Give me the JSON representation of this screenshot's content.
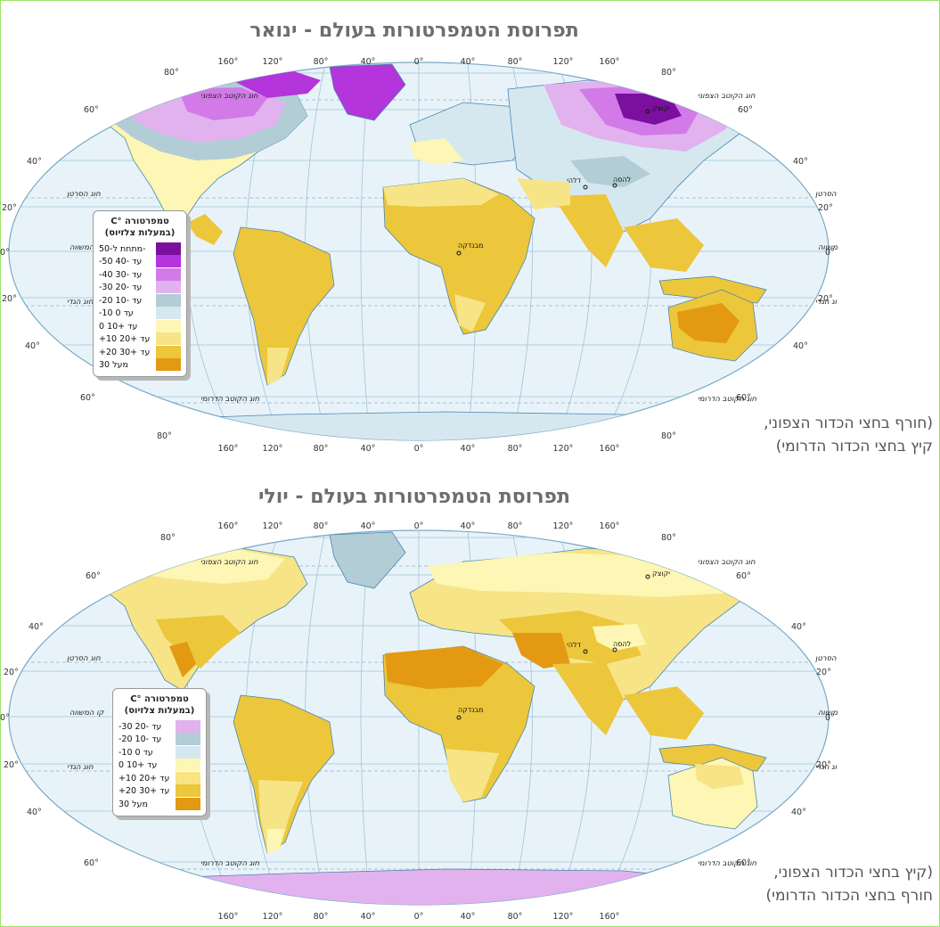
{
  "maps": [
    {
      "title": "תפרוסת הטמפרטורות בעולם - ינואר",
      "season_note": [
        "(חורף בחצי הכדור הצפוני,",
        "קיץ בחצי הכדור הדרומי)"
      ],
      "legend": {
        "title_line1": "טמפרטורה °C",
        "title_line2": "(במעלות צלזיוס)",
        "items": [
          {
            "label": "מתחת ל-50-",
            "color": "#7b0f9e"
          },
          {
            "label": "-50 עד -40",
            "color": "#b335db"
          },
          {
            "label": "-40 עד -30",
            "color": "#d27ae8"
          },
          {
            "label": "-30 עד -20",
            "color": "#e2b2ef"
          },
          {
            "label": "-20 עד -10",
            "color": "#b3cdd6"
          },
          {
            "label": "-10 עד 0",
            "color": "#d6e8ef"
          },
          {
            "label": "0 עד +10",
            "color": "#fdf6b4"
          },
          {
            "label": "+10 עד +20",
            "color": "#f6e486"
          },
          {
            "label": "+20 עד +30",
            "color": "#ecc63b"
          },
          {
            "label": "מעל 30",
            "color": "#e39a12"
          }
        ]
      },
      "places": [
        "יקוצק",
        "דלהי",
        "להסה",
        "מבנדקה"
      ]
    },
    {
      "title": "תפרוסת הטמפרטורות בעולם - יולי",
      "season_note": [
        "(קיץ בחצי הכדור הצפוני,",
        "חורף בחצי הכדור הדרומי)"
      ],
      "legend": {
        "title_line1": "טמפרטורה °C",
        "title_line2": "(במעלות צלזיוס)",
        "items": [
          {
            "label": "-30 עד -20",
            "color": "#e2b2ef"
          },
          {
            "label": "-20 עד -10",
            "color": "#b3cdd6"
          },
          {
            "label": "-10 עד 0",
            "color": "#d6e8ef"
          },
          {
            "label": "0 עד +10",
            "color": "#fdf6b4"
          },
          {
            "label": "+10 עד +20",
            "color": "#f6e486"
          },
          {
            "label": "+20 עד +30",
            "color": "#ecc63b"
          },
          {
            "label": "מעל 30",
            "color": "#e39a12"
          }
        ]
      },
      "places": [
        "יקוצק",
        "דלהי",
        "להסה",
        "מבנדקה"
      ]
    }
  ],
  "graticule": {
    "lon_labels": [
      "160°",
      "120°",
      "80°",
      "40°",
      "0°",
      "40°",
      "80°",
      "120°",
      "160°"
    ],
    "lat_labels": [
      "80°",
      "60°",
      "40°",
      "20°",
      "0°",
      "20°",
      "40°",
      "60°",
      "80°"
    ],
    "lines": {
      "arctic": "חוג הקוטב הצפוני",
      "cancer": "חוג הסרטן",
      "equator": "קו המשווה",
      "capricorn": "חוג הגדי",
      "antarctic": "חוג הקוטב הדרומי"
    }
  }
}
